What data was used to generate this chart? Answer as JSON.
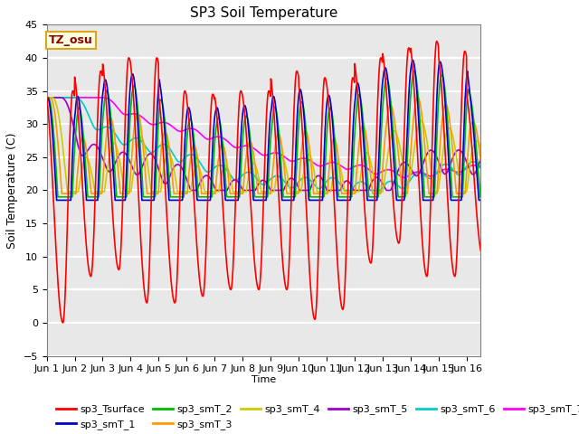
{
  "title": "SP3 Soil Temperature",
  "xlabel": "Time",
  "ylabel": "Soil Temperature (C)",
  "xlim_days": 15.5,
  "ylim": [
    -5,
    45
  ],
  "yticks": [
    -5,
    0,
    5,
    10,
    15,
    20,
    25,
    30,
    35,
    40,
    45
  ],
  "xtick_labels": [
    "Jun 1",
    "Jun 2",
    "Jun 3",
    "Jun 4",
    "Jun 5",
    "Jun 6",
    "Jun 7",
    "Jun 8",
    "Jun 9",
    "Jun 10",
    "Jun 11",
    "Jun 12",
    "Jun 13",
    "Jun 14",
    "Jun 15",
    "Jun 16"
  ],
  "bg_color": "#e8e8e8",
  "grid_color": "#ffffff",
  "legend_label": "TZ_osu",
  "series_colors": {
    "sp3_Tsurface": "#ff0000",
    "sp3_smT_1": "#0000cc",
    "sp3_smT_2": "#00bb00",
    "sp3_smT_3": "#ff9900",
    "sp3_smT_4": "#cccc00",
    "sp3_smT_5": "#9900cc",
    "sp3_smT_6": "#00cccc",
    "sp3_smT_7": "#ff00ff"
  },
  "line_width": 1.2
}
